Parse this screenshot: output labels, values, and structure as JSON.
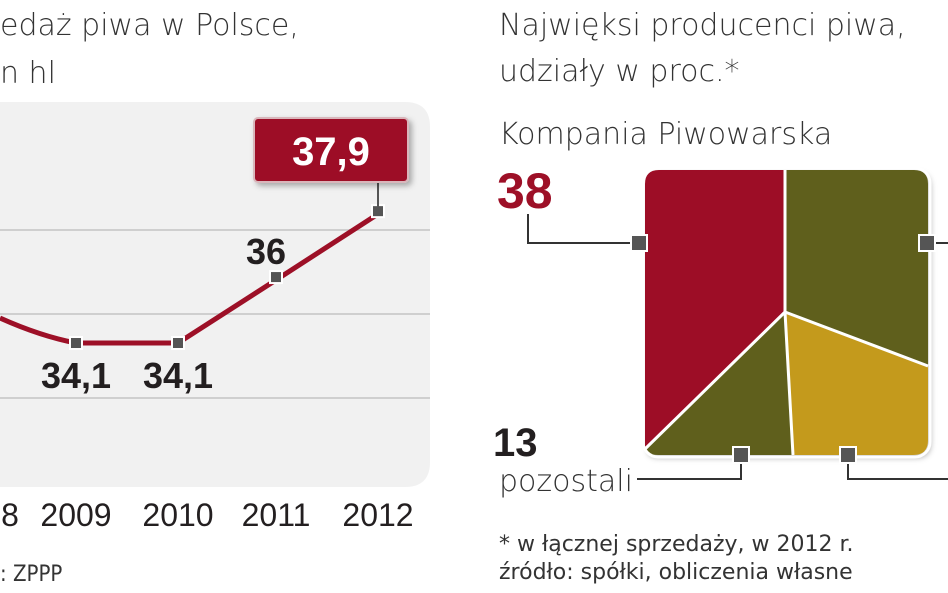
{
  "left_chart": {
    "title_line1": "edaż piwa w Polsce,",
    "title_line2": "n hl",
    "source": ": ZPPP",
    "highlight_value": "37,9"
  },
  "right_chart": {
    "title_line1": "Najwięksi producenci piwa,",
    "title_line2": "udziały w proc.*",
    "label_kp": "Kompania Piwowarska",
    "value_kp": "38",
    "label_other": "pozostali",
    "value_other": "13",
    "note1": "* w łącznej sprzedaży, w 2012 r.",
    "note2": "źródło: spółki, obliczenia własne"
  },
  "colors": {
    "accent": "#9d1027",
    "olive": "#5e5e1f",
    "mustard": "#c49a1c",
    "grid": "#cfcfcf"
  },
  "chart_data": [
    {
      "type": "line",
      "x": [
        "8",
        "2009",
        "2010",
        "2011",
        "2012"
      ],
      "series": [
        {
          "values": [
            null,
            34.1,
            34.1,
            36,
            37.9
          ]
        }
      ],
      "data_labels": [
        "",
        "34,1",
        "34,1",
        "36",
        "37,9"
      ],
      "title": "edaż piwa w Polsce,",
      "ylabel": "n hl",
      "grid": true
    },
    {
      "type": "pie",
      "labels": [
        "Kompania Piwowarska",
        "pozostali"
      ],
      "values": [
        38,
        13
      ],
      "value_labels": [
        "38",
        "13"
      ],
      "title": "Najwięksi producenci piwa,"
    }
  ]
}
